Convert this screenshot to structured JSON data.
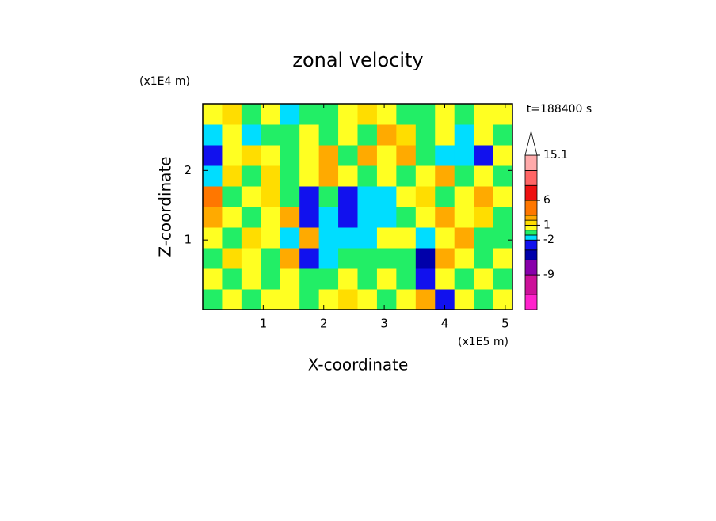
{
  "chart_data": {
    "type": "filled-contour",
    "title": "zonal velocity",
    "y_unit": "(x1E4 m)",
    "x_unit": "(x1E5 m)",
    "time_label": "t=188400 s",
    "xlabel": "X-coordinate",
    "ylabel": "Z-coordinate",
    "xlim": [
      0,
      5.12
    ],
    "ylim": [
      0,
      2.96
    ],
    "xticks": [
      1,
      2,
      3,
      4,
      5
    ],
    "yticks": [
      1,
      2
    ],
    "x": [
      0.16,
      0.48,
      0.8,
      1.12,
      1.44,
      1.76,
      2.08,
      2.4,
      2.72,
      3.04,
      3.36,
      3.68,
      4,
      4.32,
      4.64,
      4.96
    ],
    "y": [
      0.148,
      0.444,
      0.74,
      1.036,
      1.332,
      1.628,
      1.924,
      2.22,
      2.516,
      2.812
    ],
    "values": [
      [
        -0.5,
        0.5,
        -0.5,
        0.5,
        0.5,
        -0.5,
        0.5,
        1.5,
        0.5,
        -0.5,
        0.5,
        2.5,
        -3,
        0.5,
        -0.5,
        0.5
      ],
      [
        0.5,
        -0.5,
        0.5,
        -0.5,
        0.5,
        -0.5,
        -0.5,
        0.5,
        -0.5,
        0.5,
        -0.5,
        -3,
        0.5,
        -0.5,
        0.5,
        -0.5
      ],
      [
        -0.5,
        1.5,
        0.5,
        -0.5,
        2.5,
        -3,
        -1.5,
        -0.5,
        -0.5,
        -0.5,
        -0.5,
        -5,
        2.5,
        0.5,
        -0.5,
        0.5
      ],
      [
        0.5,
        -0.5,
        1.5,
        0.5,
        -1.5,
        2.5,
        -1.5,
        -1.5,
        -1.5,
        0.5,
        0.5,
        -1.5,
        0.5,
        2.5,
        -0.5,
        -0.5
      ],
      [
        2.5,
        0.5,
        -0.5,
        0.5,
        2.5,
        -3,
        -1.5,
        -3,
        -1.5,
        -1.5,
        -0.5,
        0.5,
        2.5,
        0.5,
        1.5,
        -0.5
      ],
      [
        4,
        -0.5,
        0.5,
        1.5,
        -0.5,
        -3,
        -0.5,
        -3,
        -1.5,
        -1.5,
        0.5,
        1.5,
        -0.5,
        0.5,
        2.5,
        0.5
      ],
      [
        -1.5,
        1.5,
        -0.5,
        1.5,
        -0.5,
        0.5,
        2.5,
        0.5,
        -0.5,
        0.5,
        -0.5,
        0.5,
        2.5,
        -0.5,
        0.5,
        -0.5
      ],
      [
        -3,
        0.5,
        1.5,
        0.5,
        -0.5,
        0.5,
        2.5,
        -0.5,
        2.5,
        0.5,
        2.5,
        -0.5,
        -1.5,
        -1.5,
        -3,
        0.5
      ],
      [
        -1.5,
        0.5,
        -1.5,
        -0.5,
        -0.5,
        0.5,
        -0.5,
        0.5,
        -0.5,
        2.5,
        1.5,
        -0.5,
        0.5,
        -1.5,
        0.5,
        -0.5
      ],
      [
        0.5,
        1.5,
        -0.5,
        0.5,
        -1.5,
        -0.5,
        -0.5,
        0.5,
        1.5,
        0.5,
        -0.5,
        -0.5,
        0.5,
        -0.5,
        0.5,
        0.5
      ]
    ],
    "levels": [
      -16,
      -13,
      -9,
      -6,
      -4,
      -2,
      -1,
      0,
      1,
      2,
      3,
      6,
      9,
      12,
      15.1
    ],
    "colors": [
      "#ff22cc",
      "#cc1199",
      "#8800aa",
      "#0000aa",
      "#1111ee",
      "#00ddff",
      "#22ee66",
      "#ffff22",
      "#ffdd00",
      "#ffaa00",
      "#ff7700",
      "#ee1111",
      "#ff6666",
      "#ffaaaa"
    ],
    "clim": [
      -16,
      15.1
    ],
    "cticks": [
      15.1,
      6,
      1,
      -2,
      -9
    ]
  }
}
